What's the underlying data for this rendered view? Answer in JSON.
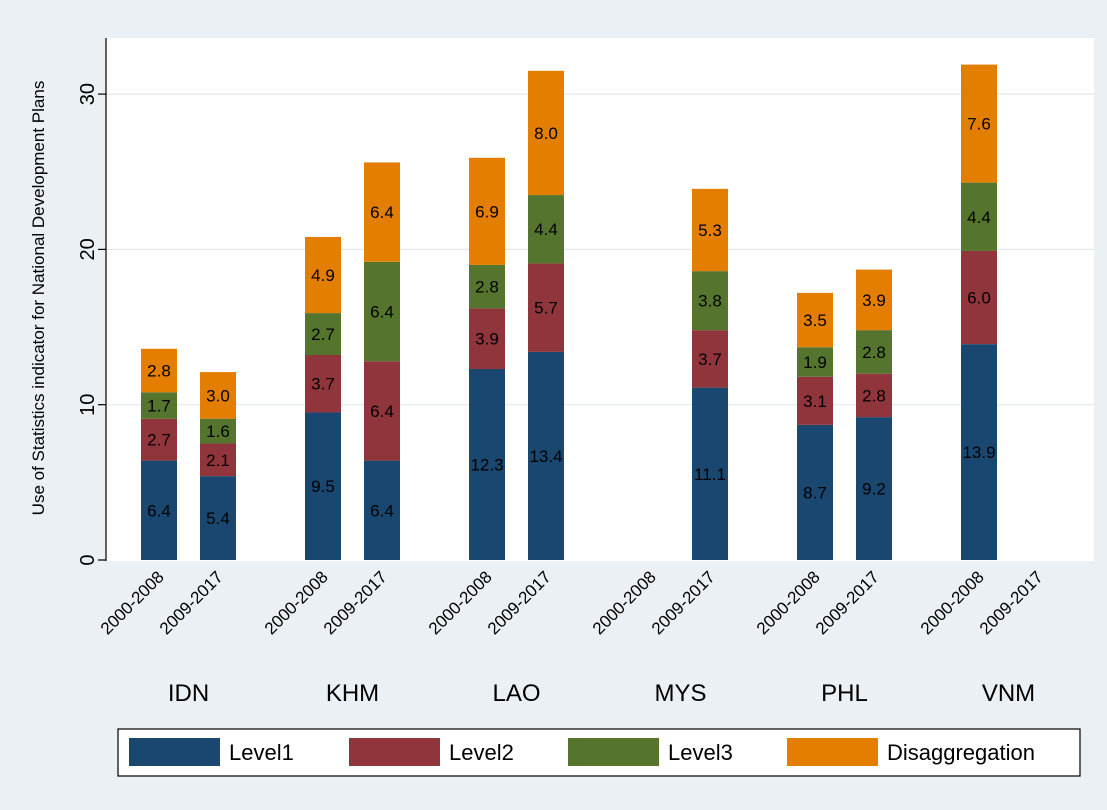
{
  "chart_data": {
    "type": "bar",
    "stacked": true,
    "ylabel": "Use of Statistics indicator for National Development Plans",
    "ylim": [
      0,
      33
    ],
    "yticks": [
      0,
      10,
      20,
      30
    ],
    "grid": true,
    "legend_position": "bottom",
    "groups": [
      "IDN",
      "KHM",
      "LAO",
      "MYS",
      "PHL",
      "VNM"
    ],
    "periods": [
      "2000-2008",
      "2009-2017"
    ],
    "series": [
      {
        "name": "Level1",
        "color": "#1a476f",
        "values": [
          [
            6.4,
            5.4
          ],
          [
            9.5,
            6.4
          ],
          [
            12.3,
            13.4
          ],
          [
            null,
            11.1
          ],
          [
            8.7,
            9.2
          ],
          [
            13.9,
            null
          ]
        ]
      },
      {
        "name": "Level2",
        "color": "#90353b",
        "values": [
          [
            2.7,
            2.1
          ],
          [
            3.7,
            6.4
          ],
          [
            3.9,
            5.7
          ],
          [
            null,
            3.7
          ],
          [
            3.1,
            2.8
          ],
          [
            6.0,
            null
          ]
        ]
      },
      {
        "name": "Level3",
        "color": "#55752f",
        "values": [
          [
            1.7,
            1.6
          ],
          [
            2.7,
            6.4
          ],
          [
            2.8,
            4.4
          ],
          [
            null,
            3.8
          ],
          [
            1.9,
            2.8
          ],
          [
            4.4,
            null
          ]
        ]
      },
      {
        "name": "Disaggregation",
        "color": "#e37e00",
        "values": [
          [
            2.8,
            3.0
          ],
          [
            4.9,
            6.4
          ],
          [
            6.9,
            8.0
          ],
          [
            null,
            5.3
          ],
          [
            3.5,
            3.9
          ],
          [
            7.6,
            null
          ]
        ]
      }
    ]
  }
}
